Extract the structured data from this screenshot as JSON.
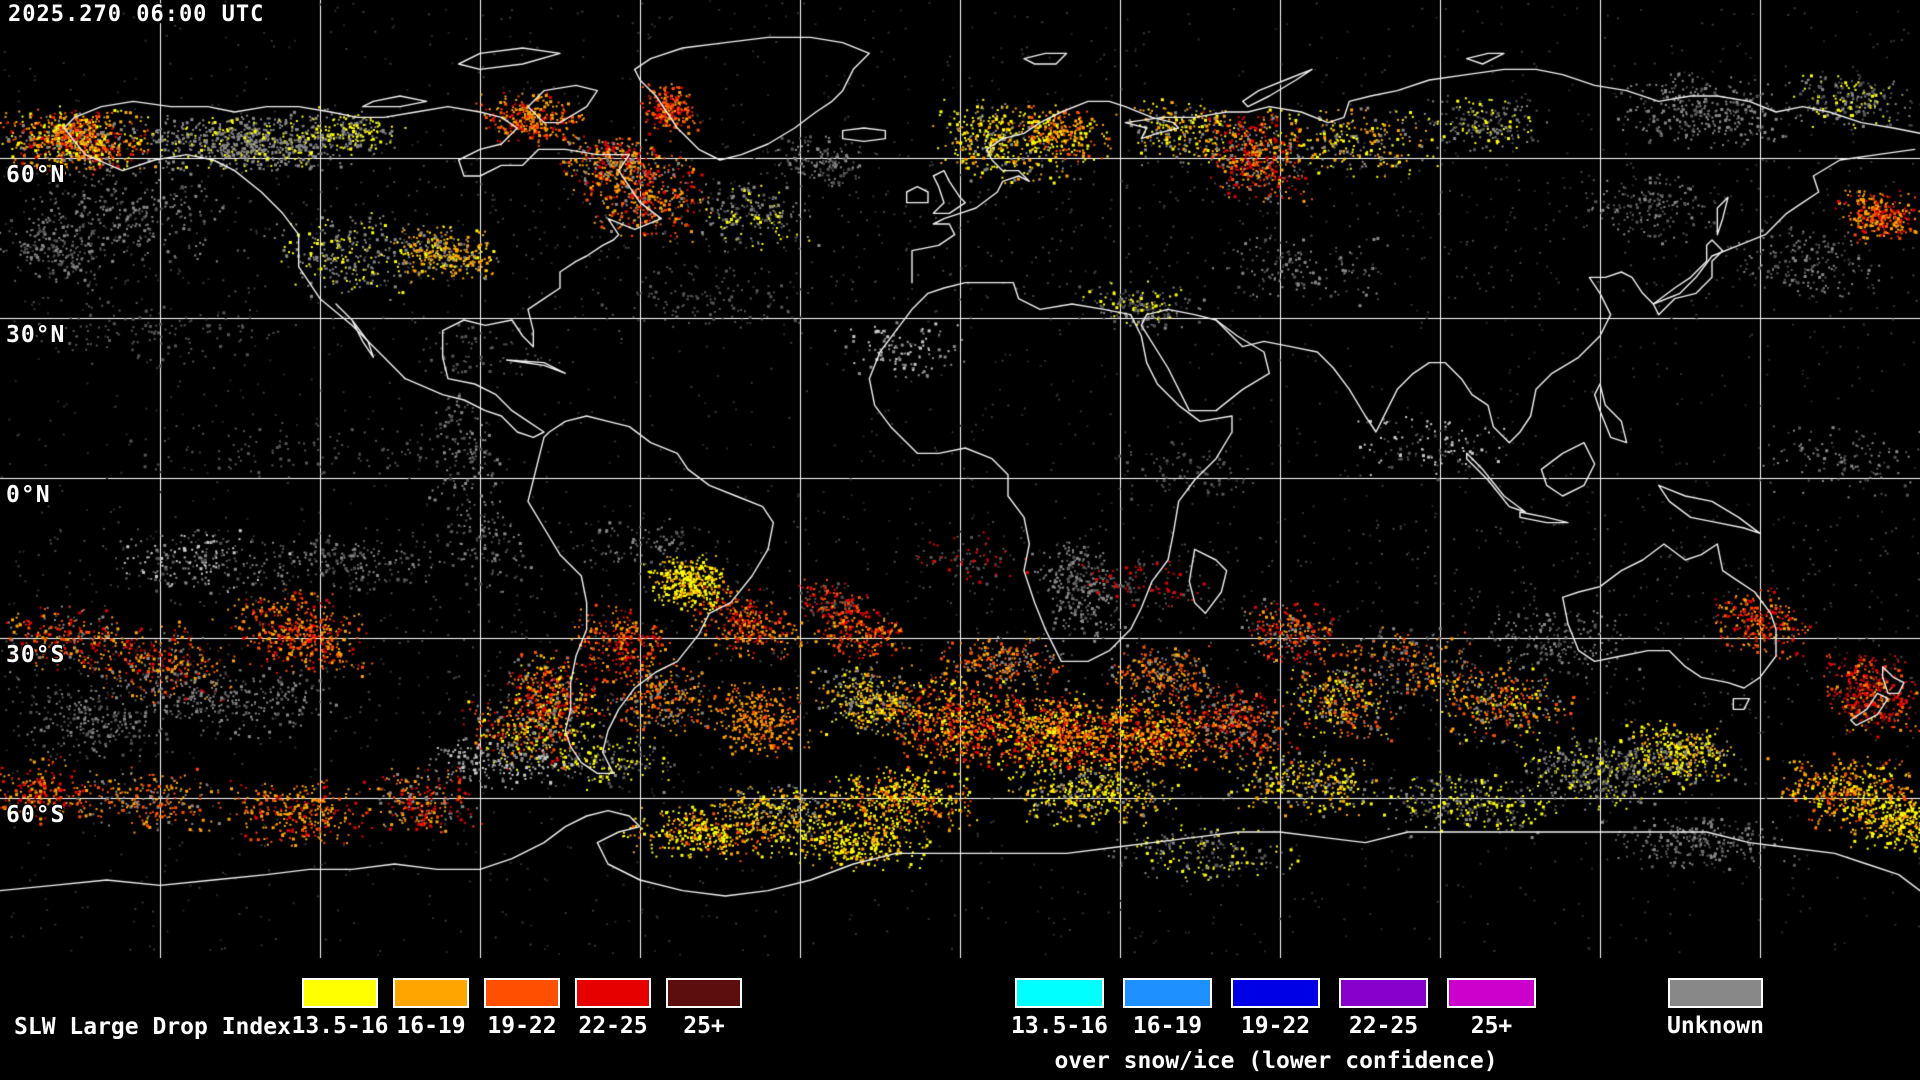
{
  "header": {
    "timestamp": "2025.270 06:00 UTC"
  },
  "map": {
    "latitude_labels": [
      "60°N",
      "30°N",
      "0°N",
      "30°S",
      "60°S"
    ],
    "background_color": "#000000",
    "coastline_color": "#f2f2f2",
    "gridline_color": "#ffffff"
  },
  "legend": {
    "title": "SLW Large Drop Index",
    "standard": {
      "items": [
        {
          "label": "13.5-16",
          "color": "#ffff00"
        },
        {
          "label": "16-19",
          "color": "#ffa500"
        },
        {
          "label": "19-22",
          "color": "#ff4f00"
        },
        {
          "label": "22-25",
          "color": "#e60000"
        },
        {
          "label": "25+",
          "color": "#5c0d0d"
        }
      ]
    },
    "snow_ice": {
      "items": [
        {
          "label": "13.5-16",
          "color": "#00ffff"
        },
        {
          "label": "16-19",
          "color": "#1e90ff"
        },
        {
          "label": "19-22",
          "color": "#0000e6"
        },
        {
          "label": "22-25",
          "color": "#8800cc"
        },
        {
          "label": "25+",
          "color": "#cc00cc"
        }
      ],
      "caption": "over snow/ice (lower confidence)"
    },
    "unknown": {
      "label": "Unknown",
      "color": "#888888"
    }
  }
}
